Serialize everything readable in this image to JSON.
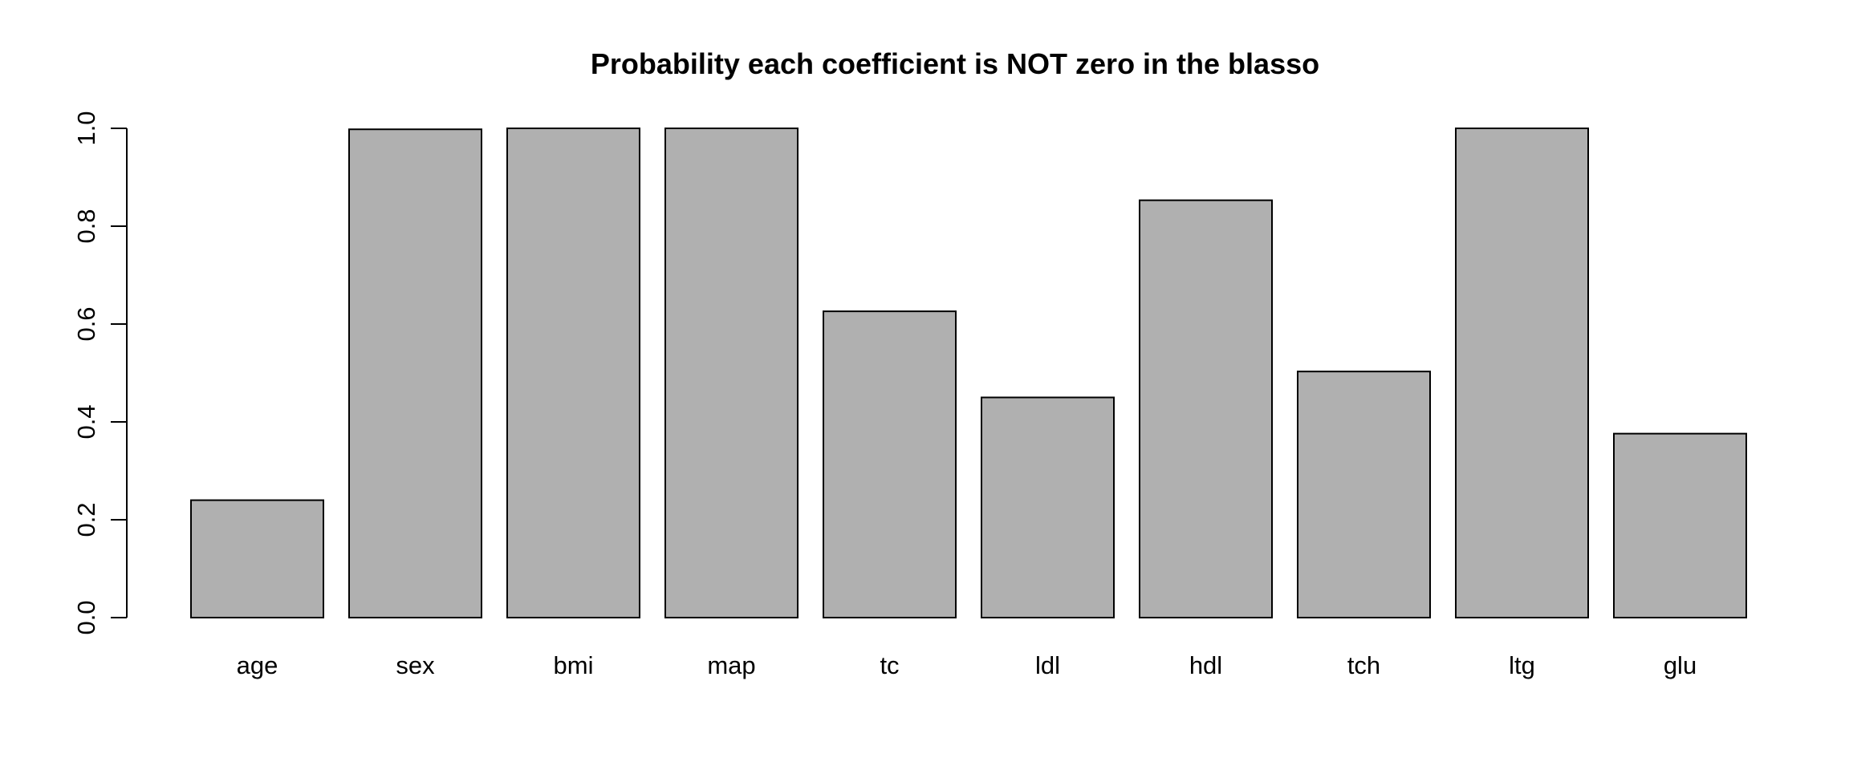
{
  "chart_data": {
    "type": "bar",
    "title": "Probability each coefficient is NOT zero in the blasso",
    "xlabel": "",
    "ylabel": "",
    "categories": [
      "age",
      "sex",
      "bmi",
      "map",
      "tc",
      "ldl",
      "hdl",
      "tch",
      "ltg",
      "glu"
    ],
    "values": [
      0.24,
      0.998,
      1.0,
      1.0,
      0.626,
      0.45,
      0.853,
      0.503,
      1.0,
      0.376
    ],
    "ylim": [
      0,
      1.0
    ],
    "yticks": [
      "0.0",
      "0.2",
      "0.4",
      "0.6",
      "0.8",
      "1.0"
    ],
    "grid": false,
    "legend": "none",
    "bar_color": "#b0b0b0",
    "edge_color": "#000000"
  }
}
